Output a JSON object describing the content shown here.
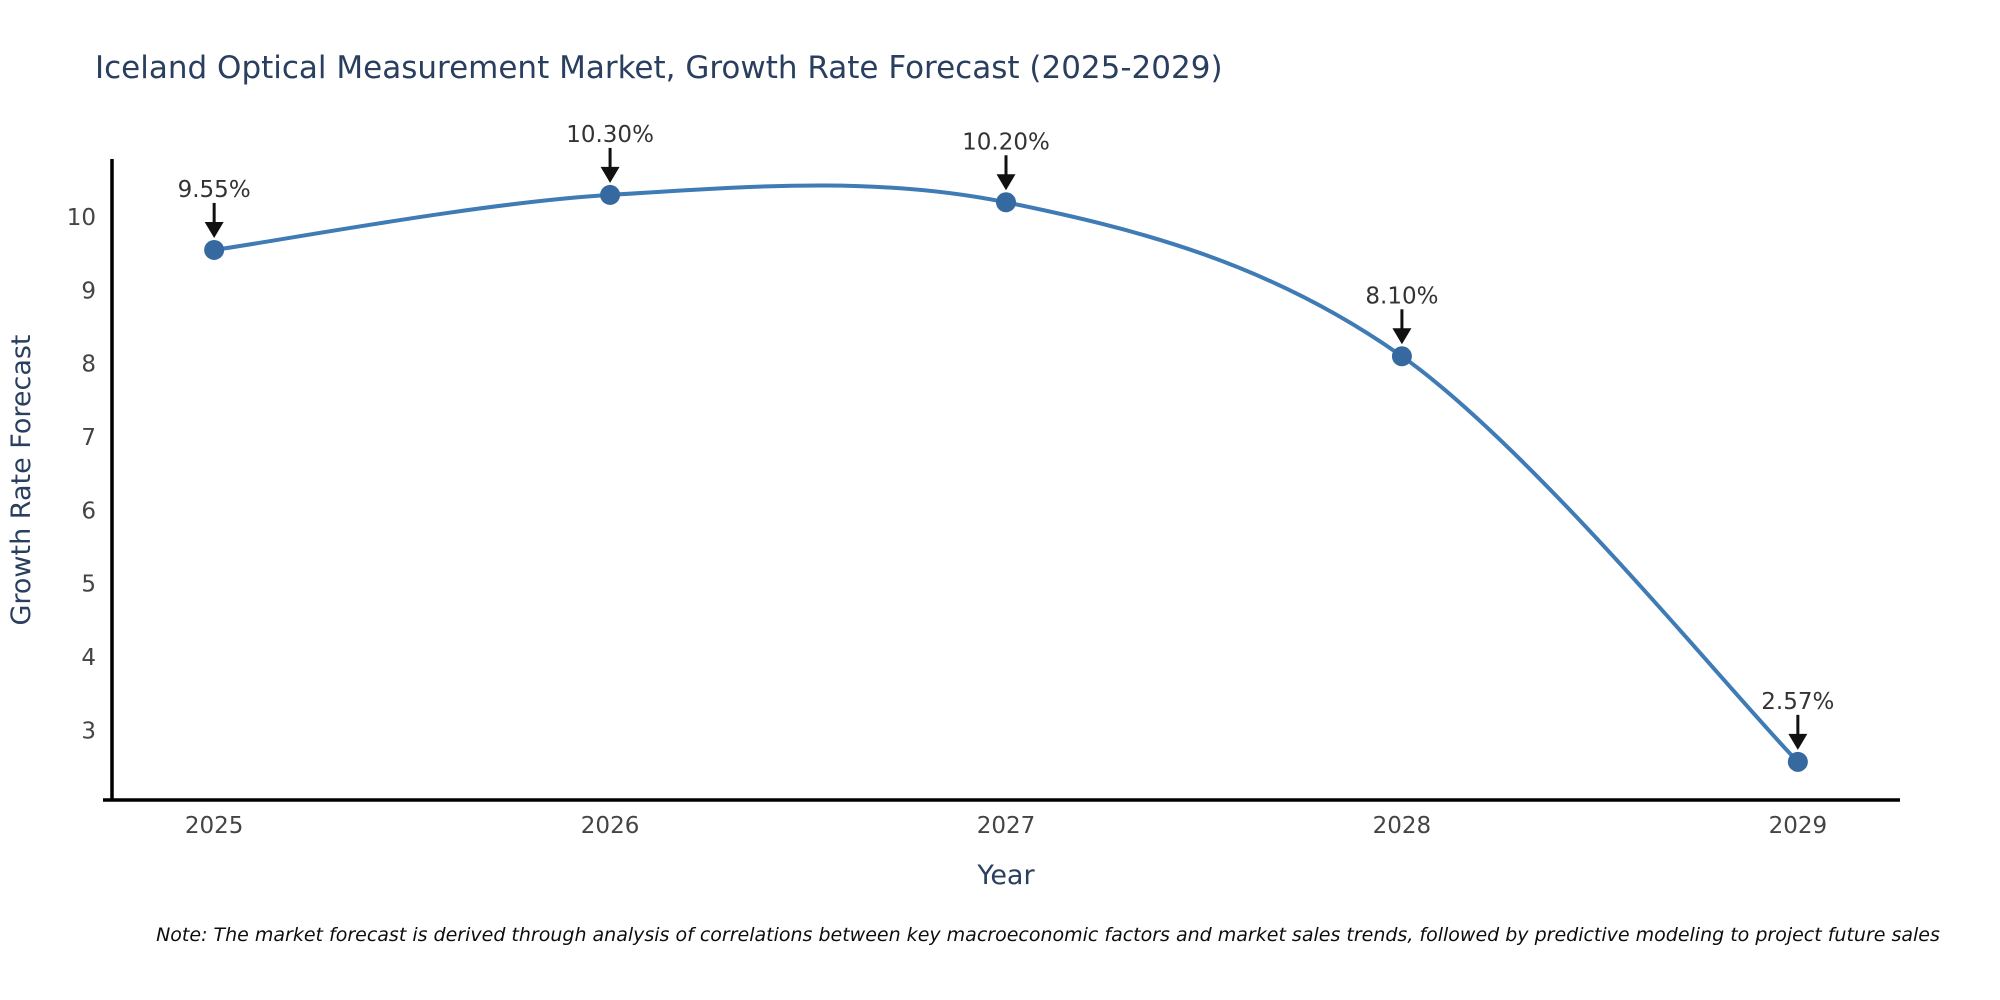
{
  "title": "Iceland Optical Measurement Market, Growth Rate Forecast (2025-2029)",
  "note": "Note: The market forecast is derived through analysis of correlations between key macroeconomic factors and market sales trends, followed by predictive modeling to project future sales",
  "chart_data": {
    "type": "line",
    "line_shape": "spline",
    "grid": false,
    "legend": "none",
    "title": "Iceland Optical Measurement Market, Growth Rate Forecast (2025-2029)",
    "xlabel": "Year",
    "ylabel": "Growth Rate Forecast",
    "x": [
      2025,
      2026,
      2027,
      2028,
      2029
    ],
    "y": [
      9.55,
      10.3,
      10.2,
      8.1,
      2.57
    ],
    "point_labels": [
      "9.55%",
      "10.30%",
      "10.20%",
      "8.10%",
      "2.57%"
    ],
    "x_tick_labels": [
      "2025",
      "2026",
      "2027",
      "2028",
      "2029"
    ],
    "y_tick_values": [
      3,
      4,
      5,
      6,
      7,
      8,
      9,
      10
    ],
    "y_tick_labels": [
      "3",
      "4",
      "5",
      "6",
      "7",
      "8",
      "9",
      "10"
    ],
    "xlim": [
      2024.742,
      2029.258
    ],
    "ylim": [
      2.05,
      10.79
    ],
    "colors": {
      "line": "#3f7bb4",
      "marker": "#35699f",
      "axis_line": "#000000",
      "title_text": "#2a3f5f",
      "tick_text": "#444444",
      "annotation_text": "#333333",
      "annotation_arrow": "#111111",
      "background": "#ffffff"
    }
  }
}
